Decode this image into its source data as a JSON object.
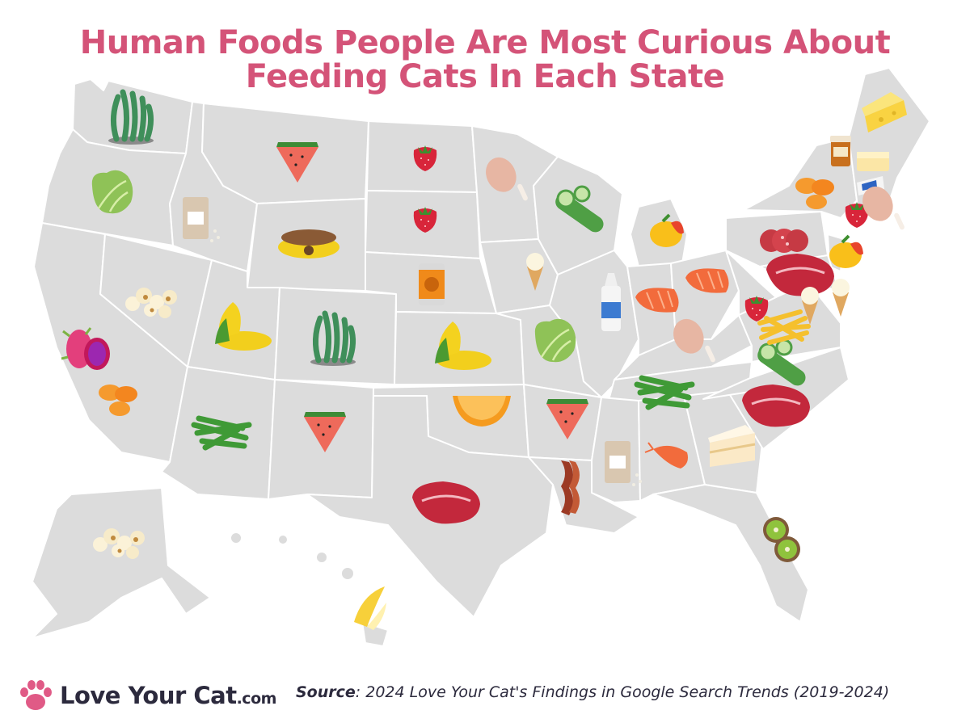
{
  "title": {
    "line1": "Human Foods People Are Most Curious About",
    "line2": "Feeding Cats In Each State"
  },
  "colors": {
    "title": "#d45378",
    "land": "#dcdcdc",
    "border": "#ffffff",
    "logo_paw": "#e05a86",
    "text": "#2c2a3d"
  },
  "states": [
    {
      "state": "Washington",
      "food": "seaweed",
      "icon": "seaweed-icon"
    },
    {
      "state": "Oregon",
      "food": "lettuce",
      "icon": "lettuce-icon"
    },
    {
      "state": "California",
      "food": "dragon fruit",
      "icon": "dragon-fruit-icon"
    },
    {
      "state": "California",
      "food": "sweet potato",
      "icon": "sweet-potato-icon"
    },
    {
      "state": "Idaho",
      "food": "rice",
      "icon": "rice-bag-icon"
    },
    {
      "state": "Nevada",
      "food": "popcorn",
      "icon": "popcorn-icon"
    },
    {
      "state": "Montana",
      "food": "watermelon",
      "icon": "watermelon-icon"
    },
    {
      "state": "Wyoming",
      "food": "cat food",
      "icon": "cat-food-bowl-icon"
    },
    {
      "state": "Utah",
      "food": "corn",
      "icon": "corn-icon"
    },
    {
      "state": "Colorado",
      "food": "seaweed",
      "icon": "seaweed-icon"
    },
    {
      "state": "Arizona",
      "food": "green beans",
      "icon": "green-beans-icon"
    },
    {
      "state": "New Mexico",
      "food": "watermelon",
      "icon": "watermelon-icon"
    },
    {
      "state": "North Dakota",
      "food": "strawberry",
      "icon": "strawberry-icon"
    },
    {
      "state": "South Dakota",
      "food": "strawberry",
      "icon": "strawberry-icon"
    },
    {
      "state": "Nebraska",
      "food": "canned pumpkin",
      "icon": "pumpkin-can-icon"
    },
    {
      "state": "Kansas",
      "food": "corn",
      "icon": "corn-icon"
    },
    {
      "state": "Oklahoma",
      "food": "orange",
      "icon": "orange-slice-icon"
    },
    {
      "state": "Texas",
      "food": "steak",
      "icon": "steak-icon"
    },
    {
      "state": "Minnesota",
      "food": "chicken",
      "icon": "chicken-leg-icon"
    },
    {
      "state": "Iowa",
      "food": "ice cream",
      "icon": "ice-cream-icon"
    },
    {
      "state": "Missouri",
      "food": "lettuce",
      "icon": "lettuce-icon"
    },
    {
      "state": "Arkansas",
      "food": "watermelon",
      "icon": "watermelon-icon"
    },
    {
      "state": "Louisiana",
      "food": "bacon",
      "icon": "bacon-icon"
    },
    {
      "state": "Wisconsin",
      "food": "cucumber",
      "icon": "cucumber-icon"
    },
    {
      "state": "Illinois",
      "food": "whipped cream",
      "icon": "whipped-cream-icon"
    },
    {
      "state": "Michigan",
      "food": "mango",
      "icon": "mango-icon"
    },
    {
      "state": "Indiana",
      "food": "salmon",
      "icon": "salmon-icon"
    },
    {
      "state": "Ohio",
      "food": "salmon",
      "icon": "salmon-icon"
    },
    {
      "state": "Kentucky",
      "food": "chicken",
      "icon": "chicken-leg-icon"
    },
    {
      "state": "Tennessee",
      "food": "green beans",
      "icon": "green-beans-icon"
    },
    {
      "state": "Mississippi",
      "food": "rice",
      "icon": "rice-bag-icon"
    },
    {
      "state": "Alabama",
      "food": "shrimp",
      "icon": "shrimp-icon"
    },
    {
      "state": "Georgia",
      "food": "cake",
      "icon": "cake-icon"
    },
    {
      "state": "Florida",
      "food": "kiwi",
      "icon": "kiwi-icon"
    },
    {
      "state": "South Carolina",
      "food": "steak",
      "icon": "steak-icon"
    },
    {
      "state": "North Carolina",
      "food": "cucumber",
      "icon": "cucumber-icon"
    },
    {
      "state": "Virginia",
      "food": "french fries",
      "icon": "french-fries-icon"
    },
    {
      "state": "West Virginia",
      "food": "strawberry",
      "icon": "strawberry-icon"
    },
    {
      "state": "Pennsylvania",
      "food": "salami",
      "icon": "salami-icon"
    },
    {
      "state": "Maryland",
      "food": "steak",
      "icon": "steak-icon"
    },
    {
      "state": "Delaware",
      "food": "ice cream",
      "icon": "ice-cream-icon"
    },
    {
      "state": "New Jersey",
      "food": "mango",
      "icon": "mango-icon"
    },
    {
      "state": "New York",
      "food": "sweet potato",
      "icon": "sweet-potato-icon"
    },
    {
      "state": "Vermont",
      "food": "peanut butter",
      "icon": "peanut-butter-jar-icon"
    },
    {
      "state": "New Hampshire",
      "food": "butter",
      "icon": "butter-icon"
    },
    {
      "state": "Maine",
      "food": "cheese",
      "icon": "cheese-icon"
    },
    {
      "state": "Massachusetts",
      "food": "yogurt",
      "icon": "yogurt-icon"
    },
    {
      "state": "Connecticut",
      "food": "strawberry",
      "icon": "strawberry-icon"
    },
    {
      "state": "Rhode Island",
      "food": "chicken",
      "icon": "chicken-leg-icon"
    },
    {
      "state": "Alaska",
      "food": "popcorn",
      "icon": "popcorn-icon"
    },
    {
      "state": "Hawaii",
      "food": "banana",
      "icon": "banana-icon"
    }
  ],
  "logo": {
    "name": "Love Your Cat",
    "domain": ".com",
    "icon": "paw-icon"
  },
  "source": {
    "label": "Source",
    "text": ": 2024 Love Your Cat's Findings in Google Search Trends (2019-2024)"
  }
}
